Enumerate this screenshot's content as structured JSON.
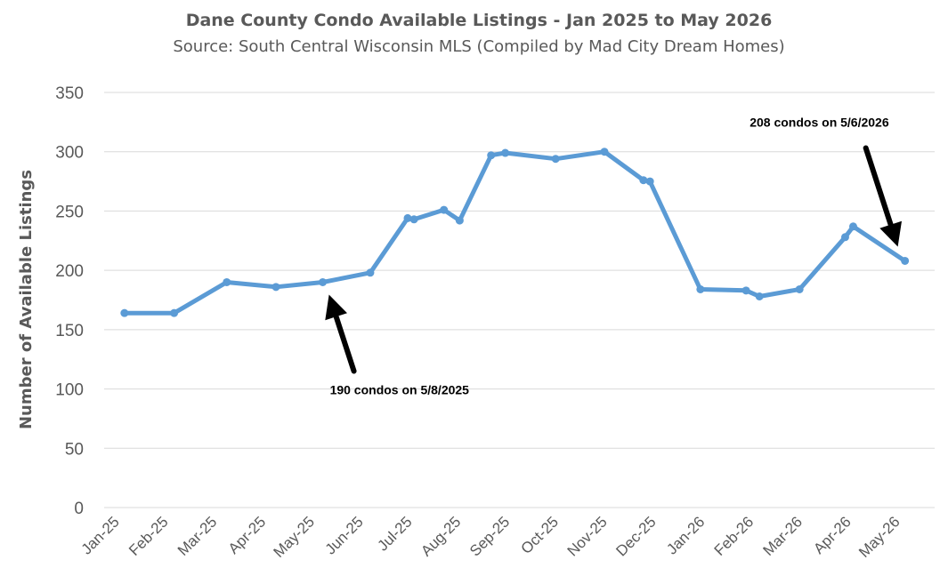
{
  "chart_data": {
    "type": "line",
    "title": "Dane County Condo Available Listings - Jan 2025 to May 2026",
    "subtitle": "Source: South Central Wisconsin MLS (Compiled by Mad City Dream Homes)",
    "xlabel": "",
    "ylabel": "Number of Available Listings",
    "ylim": [
      0,
      350
    ],
    "yticks": [
      0,
      50,
      100,
      150,
      200,
      250,
      300,
      350
    ],
    "categories": [
      "Jan-25",
      "Feb-25",
      "Mar-25",
      "Apr-25",
      "May-25",
      "Jun-25",
      "Jul-25",
      "Aug-25",
      "Sep-25",
      "Oct-25",
      "Nov-25",
      "Dec-25",
      "Jan-26",
      "Feb-26",
      "Mar-26",
      "Apr-26",
      "May-26"
    ],
    "grid": true,
    "legend": "none",
    "series": [
      {
        "color": "#5b9bd5",
        "points": [
          {
            "x": "2025-01-06",
            "y": 164
          },
          {
            "x": "2025-02-06",
            "y": 164
          },
          {
            "x": "2025-03-09",
            "y": 190
          },
          {
            "x": "2025-04-09",
            "y": 186
          },
          {
            "x": "2025-05-08",
            "y": 190
          },
          {
            "x": "2025-06-07",
            "y": 198
          },
          {
            "x": "2025-06-30",
            "y": 244
          },
          {
            "x": "2025-07-04",
            "y": 243
          },
          {
            "x": "2025-07-23",
            "y": 251
          },
          {
            "x": "2025-08-02",
            "y": 242
          },
          {
            "x": "2025-08-22",
            "y": 297
          },
          {
            "x": "2025-08-31",
            "y": 299
          },
          {
            "x": "2025-10-01",
            "y": 294
          },
          {
            "x": "2025-11-01",
            "y": 300
          },
          {
            "x": "2025-11-25",
            "y": 276
          },
          {
            "x": "2025-11-29",
            "y": 275
          },
          {
            "x": "2025-12-31",
            "y": 184
          },
          {
            "x": "2026-01-29",
            "y": 183
          },
          {
            "x": "2026-02-06",
            "y": 178
          },
          {
            "x": "2026-03-01",
            "y": 184
          },
          {
            "x": "2026-03-30",
            "y": 228
          },
          {
            "x": "2026-04-04",
            "y": 237
          },
          {
            "x": "2026-05-06",
            "y": 208
          }
        ]
      }
    ],
    "annotations": [
      {
        "text": "190 condos on 5/8/2025",
        "x": "2025-05-08",
        "y": 190
      },
      {
        "text": "208 condos on 5/6/2026",
        "x": "2026-05-06",
        "y": 208
      }
    ]
  }
}
